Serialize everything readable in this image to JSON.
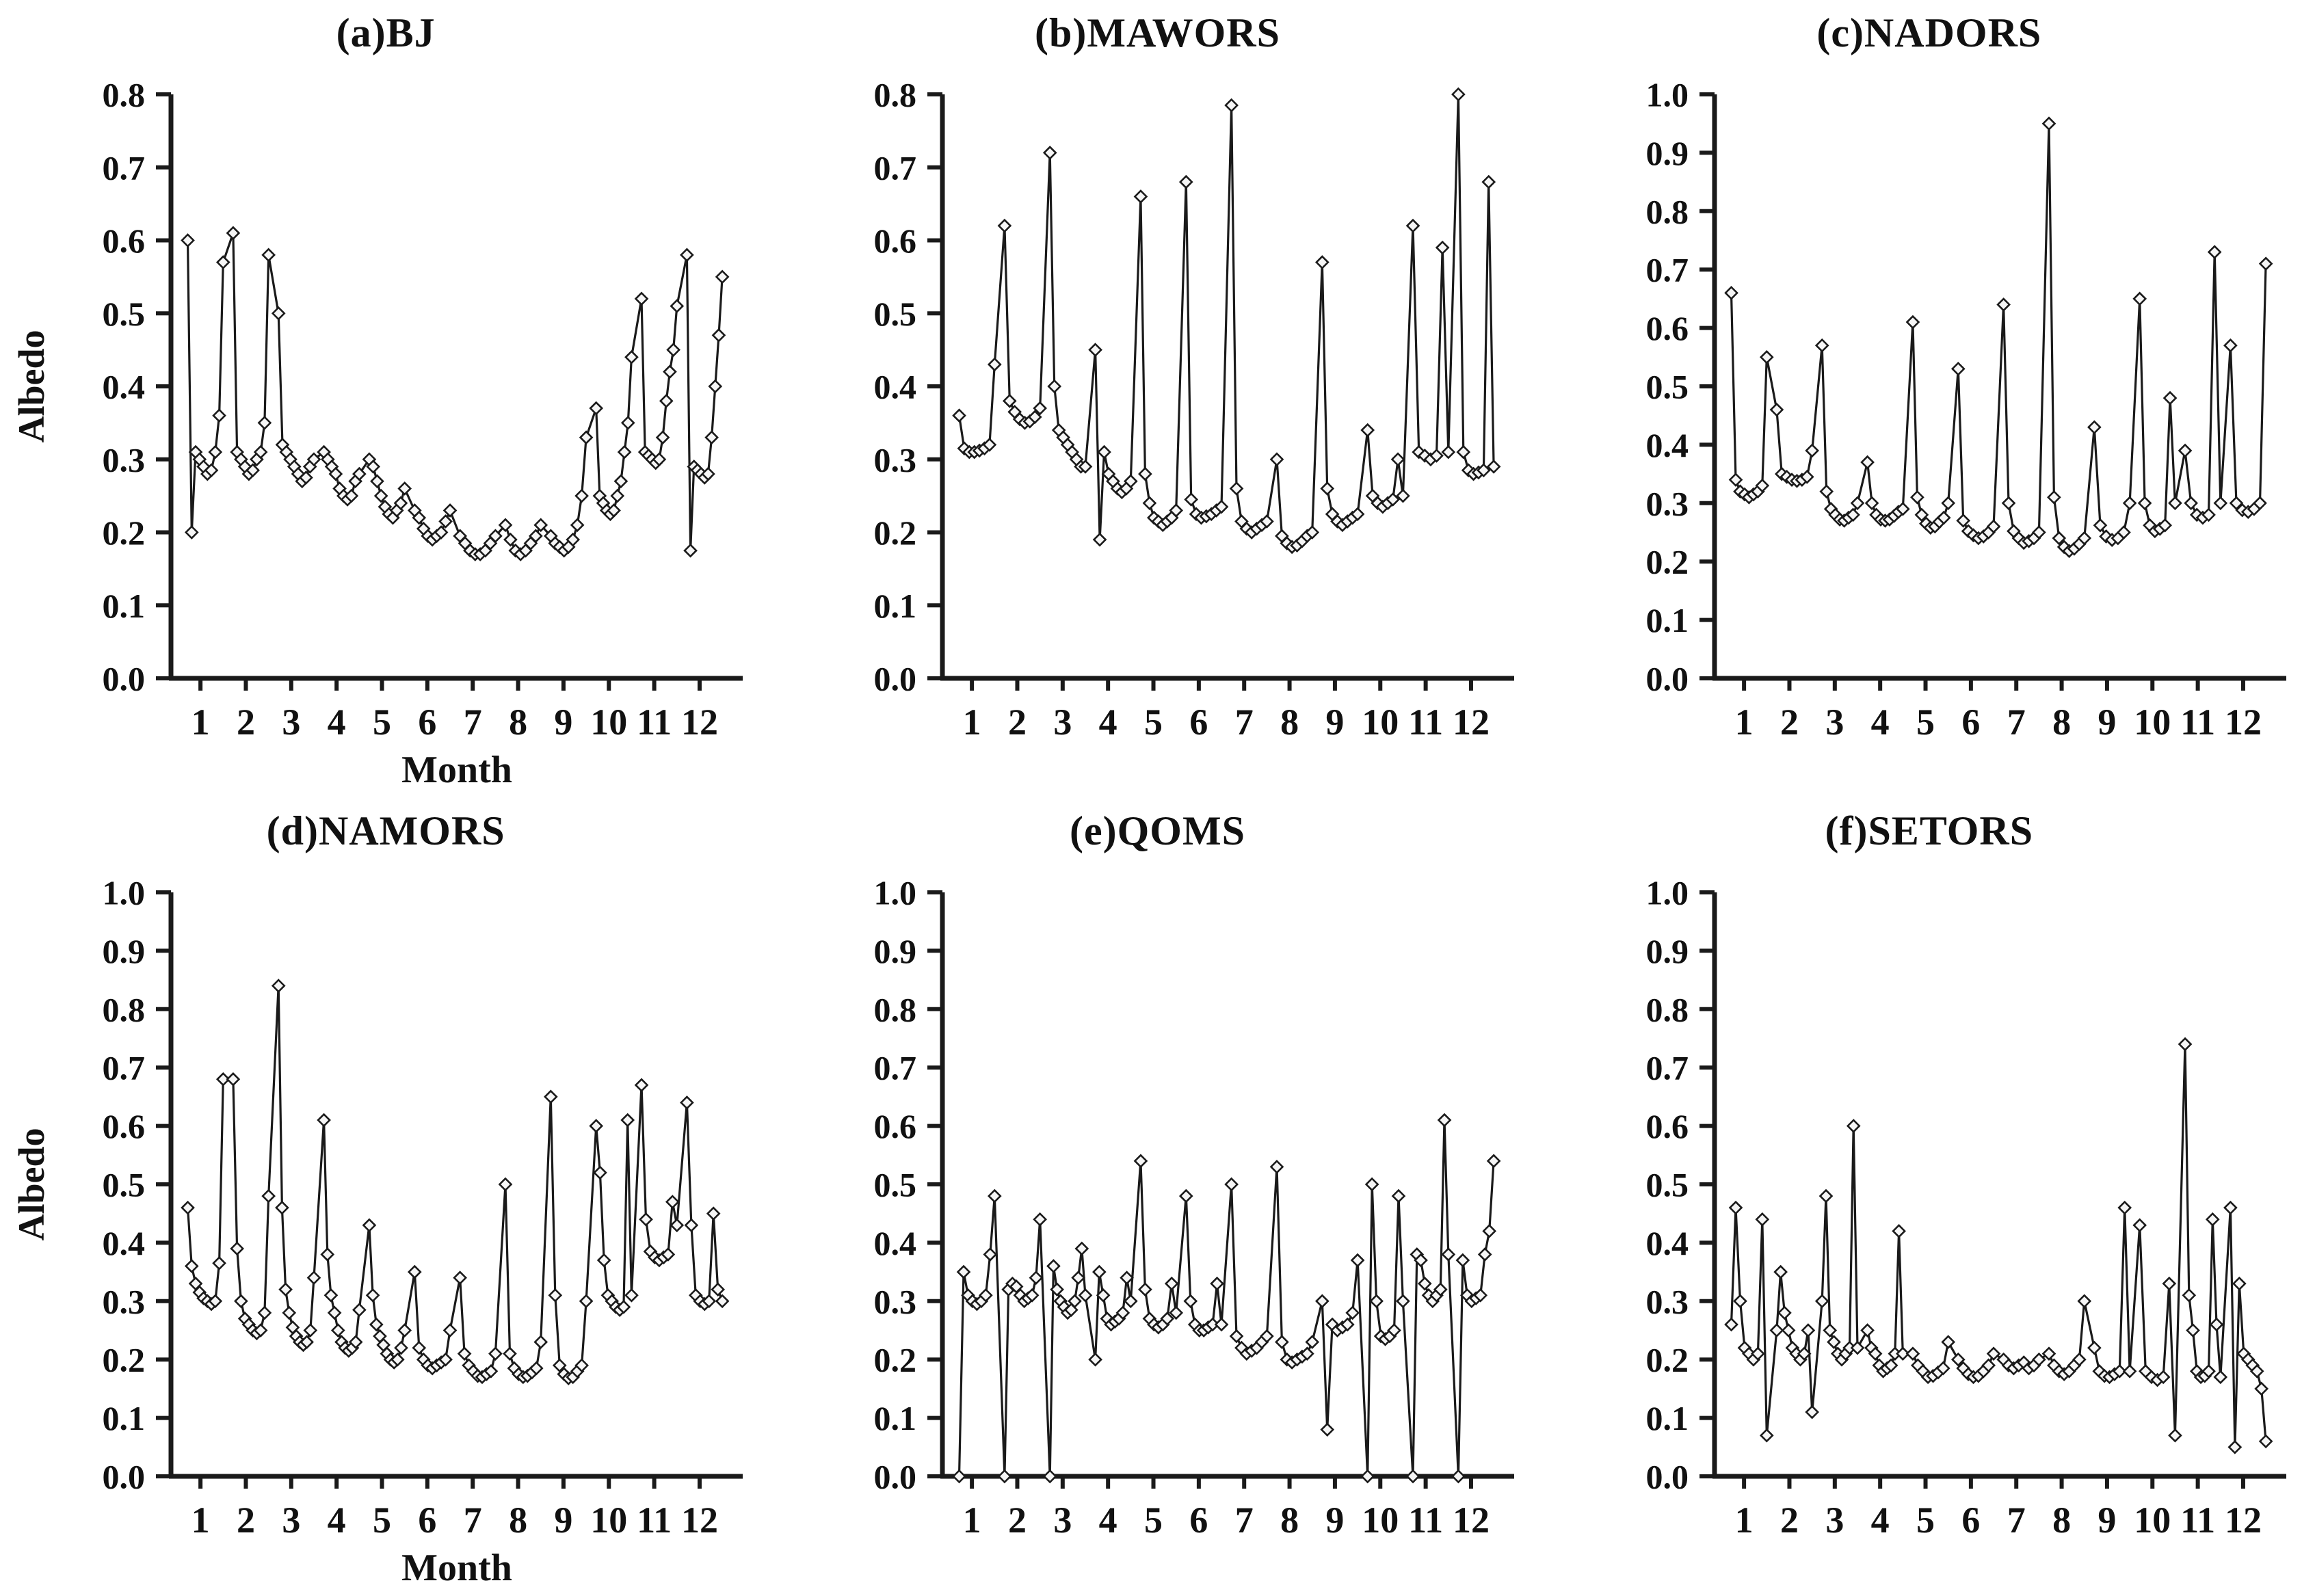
{
  "figure": {
    "month_labels": [
      "1",
      "2",
      "3",
      "4",
      "5",
      "6",
      "7",
      "8",
      "9",
      "10",
      "11",
      "12"
    ],
    "line_color": "#1a1a1a",
    "marker_fill": "#f6f6f6",
    "background": "#ffffff"
  },
  "chart_data": [
    {
      "type": "line",
      "key": "a",
      "title": "(a)BJ",
      "ylabel": "Albedo",
      "xlabel": "Month",
      "ylim": [
        0,
        0.8
      ],
      "ytick_step": 0.1,
      "series_by_month": {
        "1": [
          0.6,
          0.2,
          0.31,
          0.3,
          0.29,
          0.28,
          0.285,
          0.31,
          0.36,
          0.57
        ],
        "2": [
          0.61,
          0.31,
          0.3,
          0.29,
          0.28,
          0.285,
          0.3,
          0.31,
          0.35,
          0.58
        ],
        "3": [
          0.5,
          0.32,
          0.31,
          0.3,
          0.29,
          0.28,
          0.27,
          0.275,
          0.29,
          0.3
        ],
        "4": [
          0.31,
          0.3,
          0.29,
          0.28,
          0.26,
          0.25,
          0.245,
          0.25,
          0.27,
          0.28
        ],
        "5": [
          0.3,
          0.29,
          0.27,
          0.25,
          0.235,
          0.225,
          0.22,
          0.23,
          0.24,
          0.26
        ],
        "6": [
          0.23,
          0.22,
          0.205,
          0.195,
          0.19,
          0.195,
          0.2,
          0.215,
          0.23
        ],
        "7": [
          0.195,
          0.185,
          0.175,
          0.17,
          0.17,
          0.175,
          0.185,
          0.195
        ],
        "8": [
          0.21,
          0.19,
          0.175,
          0.17,
          0.175,
          0.185,
          0.195,
          0.21
        ],
        "9": [
          0.195,
          0.185,
          0.18,
          0.175,
          0.18,
          0.19,
          0.21,
          0.25,
          0.33
        ],
        "10": [
          0.37,
          0.25,
          0.24,
          0.23,
          0.225,
          0.23,
          0.25,
          0.27,
          0.31,
          0.35,
          0.44
        ],
        "11": [
          0.52,
          0.31,
          0.305,
          0.3,
          0.295,
          0.3,
          0.33,
          0.38,
          0.42,
          0.45,
          0.51
        ],
        "12": [
          0.58,
          0.175,
          0.29,
          0.285,
          0.28,
          0.275,
          0.28,
          0.33,
          0.4,
          0.47,
          0.55
        ]
      }
    },
    {
      "type": "line",
      "key": "b",
      "title": "(b)MAWORS",
      "ylabel": "",
      "xlabel": "",
      "ylim": [
        0,
        0.8
      ],
      "ytick_step": 0.1,
      "series_by_month": {
        "1": [
          0.36,
          0.315,
          0.31,
          0.31,
          0.312,
          0.315,
          0.32,
          0.43
        ],
        "2": [
          0.62,
          0.38,
          0.365,
          0.355,
          0.35,
          0.352,
          0.358,
          0.37
        ],
        "3": [
          0.72,
          0.4,
          0.34,
          0.33,
          0.32,
          0.31,
          0.3,
          0.29,
          0.29
        ],
        "4": [
          0.45,
          0.19,
          0.31,
          0.28,
          0.27,
          0.26,
          0.255,
          0.26,
          0.27
        ],
        "5": [
          0.66,
          0.28,
          0.24,
          0.22,
          0.215,
          0.21,
          0.215,
          0.22,
          0.23
        ],
        "6": [
          0.68,
          0.245,
          0.225,
          0.22,
          0.222,
          0.225,
          0.23,
          0.235
        ],
        "7": [
          0.785,
          0.26,
          0.215,
          0.205,
          0.2,
          0.205,
          0.21,
          0.215
        ],
        "8": [
          0.3,
          0.195,
          0.185,
          0.18,
          0.182,
          0.188,
          0.195,
          0.2
        ],
        "9": [
          0.57,
          0.26,
          0.225,
          0.215,
          0.21,
          0.215,
          0.22,
          0.225
        ],
        "10": [
          0.34,
          0.25,
          0.24,
          0.235,
          0.24,
          0.245,
          0.3,
          0.25
        ],
        "11": [
          0.62,
          0.31,
          0.305,
          0.3,
          0.305,
          0.59,
          0.31
        ],
        "12": [
          0.8,
          0.31,
          0.285,
          0.28,
          0.282,
          0.285,
          0.68,
          0.29
        ]
      }
    },
    {
      "type": "line",
      "key": "c",
      "title": "(c)NADORS",
      "ylabel": "",
      "xlabel": "",
      "ylim": [
        0,
        1.0
      ],
      "ytick_step": 0.1,
      "series_by_month": {
        "1": [
          0.66,
          0.34,
          0.32,
          0.315,
          0.31,
          0.315,
          0.32,
          0.33,
          0.55
        ],
        "2": [
          0.46,
          0.35,
          0.345,
          0.34,
          0.338,
          0.34,
          0.345,
          0.39
        ],
        "3": [
          0.57,
          0.32,
          0.29,
          0.28,
          0.272,
          0.27,
          0.275,
          0.28,
          0.3
        ],
        "4": [
          0.37,
          0.3,
          0.28,
          0.272,
          0.27,
          0.272,
          0.278,
          0.285,
          0.29
        ],
        "5": [
          0.61,
          0.31,
          0.28,
          0.265,
          0.258,
          0.26,
          0.268,
          0.275,
          0.3
        ],
        "6": [
          0.53,
          0.27,
          0.252,
          0.245,
          0.24,
          0.243,
          0.25,
          0.26
        ],
        "7": [
          0.64,
          0.3,
          0.252,
          0.24,
          0.232,
          0.235,
          0.24,
          0.25
        ],
        "8": [
          0.95,
          0.31,
          0.24,
          0.225,
          0.218,
          0.222,
          0.23,
          0.24
        ],
        "9": [
          0.43,
          0.262,
          0.243,
          0.237,
          0.24,
          0.25,
          0.3
        ],
        "10": [
          0.65,
          0.3,
          0.262,
          0.252,
          0.256,
          0.262,
          0.48,
          0.3
        ],
        "11": [
          0.39,
          0.3,
          0.28,
          0.275,
          0.28,
          0.73,
          0.3
        ],
        "12": [
          0.57,
          0.3,
          0.288,
          0.285,
          0.29,
          0.3,
          0.71
        ]
      }
    },
    {
      "type": "line",
      "key": "d",
      "title": "(d)NAMORS",
      "ylabel": "Albedo",
      "xlabel": "Month",
      "ylim": [
        0,
        1.0
      ],
      "ytick_step": 0.1,
      "series_by_month": {
        "1": [
          0.46,
          0.36,
          0.33,
          0.315,
          0.305,
          0.3,
          0.295,
          0.3,
          0.365,
          0.68
        ],
        "2": [
          0.68,
          0.39,
          0.3,
          0.27,
          0.26,
          0.25,
          0.245,
          0.25,
          0.28,
          0.48
        ],
        "3": [
          0.84,
          0.46,
          0.32,
          0.28,
          0.255,
          0.24,
          0.23,
          0.225,
          0.23,
          0.25,
          0.34
        ],
        "4": [
          0.61,
          0.38,
          0.31,
          0.28,
          0.25,
          0.23,
          0.22,
          0.215,
          0.22,
          0.23,
          0.285
        ],
        "5": [
          0.43,
          0.31,
          0.26,
          0.24,
          0.225,
          0.21,
          0.2,
          0.195,
          0.2,
          0.22,
          0.25
        ],
        "6": [
          0.35,
          0.22,
          0.2,
          0.19,
          0.185,
          0.19,
          0.195,
          0.2,
          0.25
        ],
        "7": [
          0.34,
          0.21,
          0.19,
          0.18,
          0.172,
          0.17,
          0.175,
          0.18,
          0.21
        ],
        "8": [
          0.5,
          0.21,
          0.185,
          0.175,
          0.17,
          0.172,
          0.178,
          0.185,
          0.23
        ],
        "9": [
          0.65,
          0.31,
          0.19,
          0.175,
          0.168,
          0.17,
          0.18,
          0.19,
          0.3
        ],
        "10": [
          0.6,
          0.52,
          0.37,
          0.31,
          0.3,
          0.29,
          0.285,
          0.29,
          0.61,
          0.31
        ],
        "11": [
          0.67,
          0.44,
          0.385,
          0.375,
          0.37,
          0.375,
          0.38,
          0.47,
          0.43
        ],
        "12": [
          0.64,
          0.43,
          0.31,
          0.3,
          0.295,
          0.3,
          0.45,
          0.32,
          0.3
        ]
      }
    },
    {
      "type": "line",
      "key": "e",
      "title": "(e)QOMS",
      "ylabel": "",
      "xlabel": "",
      "ylim": [
        0,
        1.0
      ],
      "ytick_step": 0.1,
      "series_by_month": {
        "1": [
          0.0,
          0.35,
          0.31,
          0.3,
          0.295,
          0.3,
          0.31,
          0.38,
          0.48
        ],
        "2": [
          0.0,
          0.32,
          0.33,
          0.325,
          0.31,
          0.3,
          0.305,
          0.31,
          0.34,
          0.44
        ],
        "3": [
          0.0,
          0.36,
          0.32,
          0.3,
          0.29,
          0.28,
          0.285,
          0.3,
          0.34,
          0.39,
          0.31
        ],
        "4": [
          0.2,
          0.35,
          0.31,
          0.27,
          0.26,
          0.265,
          0.27,
          0.28,
          0.34,
          0.3
        ],
        "5": [
          0.54,
          0.32,
          0.27,
          0.26,
          0.255,
          0.26,
          0.27,
          0.33,
          0.28
        ],
        "6": [
          0.48,
          0.3,
          0.26,
          0.25,
          0.25,
          0.255,
          0.26,
          0.33,
          0.26
        ],
        "7": [
          0.5,
          0.24,
          0.22,
          0.21,
          0.215,
          0.22,
          0.23,
          0.24
        ],
        "8": [
          0.53,
          0.23,
          0.2,
          0.195,
          0.2,
          0.205,
          0.21,
          0.23
        ],
        "9": [
          0.3,
          0.08,
          0.26,
          0.25,
          0.255,
          0.26,
          0.28,
          0.37
        ],
        "10": [
          0.0,
          0.5,
          0.3,
          0.24,
          0.235,
          0.24,
          0.25,
          0.48,
          0.3
        ],
        "11": [
          0.0,
          0.38,
          0.37,
          0.33,
          0.31,
          0.3,
          0.31,
          0.32,
          0.61,
          0.38
        ],
        "12": [
          0.0,
          0.37,
          0.31,
          0.3,
          0.305,
          0.31,
          0.38,
          0.42,
          0.54
        ]
      }
    },
    {
      "type": "line",
      "key": "f",
      "title": "(f)SETORS",
      "ylabel": "",
      "xlabel": "",
      "ylim": [
        0,
        1.0
      ],
      "ytick_step": 0.1,
      "series_by_month": {
        "1": [
          0.26,
          0.46,
          0.3,
          0.22,
          0.21,
          0.2,
          0.21,
          0.44,
          0.07
        ],
        "2": [
          0.25,
          0.35,
          0.28,
          0.25,
          0.22,
          0.21,
          0.2,
          0.21,
          0.25,
          0.11
        ],
        "3": [
          0.3,
          0.48,
          0.25,
          0.23,
          0.21,
          0.2,
          0.21,
          0.22,
          0.6,
          0.22
        ],
        "4": [
          0.25,
          0.22,
          0.21,
          0.19,
          0.18,
          0.185,
          0.19,
          0.21,
          0.42,
          0.21
        ],
        "5": [
          0.21,
          0.19,
          0.18,
          0.17,
          0.172,
          0.178,
          0.185,
          0.23
        ],
        "6": [
          0.2,
          0.185,
          0.175,
          0.17,
          0.172,
          0.18,
          0.19,
          0.21
        ],
        "7": [
          0.2,
          0.19,
          0.185,
          0.19,
          0.195,
          0.185,
          0.19,
          0.2
        ],
        "8": [
          0.21,
          0.19,
          0.18,
          0.175,
          0.18,
          0.19,
          0.2,
          0.3
        ],
        "9": [
          0.22,
          0.18,
          0.172,
          0.17,
          0.175,
          0.18,
          0.46,
          0.18
        ],
        "10": [
          0.43,
          0.18,
          0.17,
          0.165,
          0.17,
          0.33,
          0.07
        ],
        "11": [
          0.74,
          0.31,
          0.25,
          0.18,
          0.17,
          0.172,
          0.18,
          0.44,
          0.26,
          0.17
        ],
        "12": [
          0.46,
          0.05,
          0.33,
          0.21,
          0.2,
          0.19,
          0.18,
          0.15,
          0.06
        ]
      }
    }
  ]
}
